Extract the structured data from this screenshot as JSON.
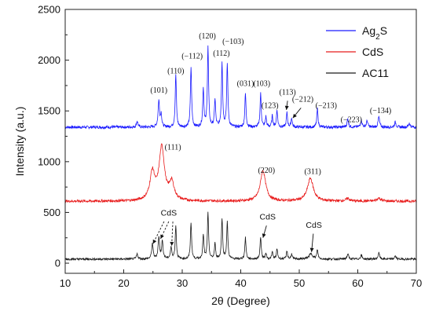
{
  "chart_data": {
    "type": "line",
    "xlabel": "2θ (Degree)",
    "ylabel": "Intensity (a.u.)",
    "xlim": [
      10,
      70
    ],
    "ylim": [
      -100,
      2500
    ],
    "xticks": [
      "10",
      "20",
      "30",
      "40",
      "50",
      "60",
      "70"
    ],
    "xtick_values": [
      10,
      20,
      30,
      40,
      50,
      60,
      70
    ],
    "yticks": [
      "0",
      "500",
      "1000",
      "1500",
      "2000",
      "2500"
    ],
    "ytick_values": [
      0,
      500,
      1000,
      1500,
      2000,
      2500
    ],
    "grid": false,
    "legend_position": "top-right",
    "series": [
      {
        "name": "Ag",
        "name_sub": "2",
        "name_tail": "S",
        "color": "#1a1aff",
        "baseline": 1340,
        "noise": 14,
        "peaks": [
          {
            "x": 22.3,
            "h": 60,
            "w": 0.15
          },
          {
            "x": 26.0,
            "h": 260,
            "w": 0.15
          },
          {
            "x": 26.4,
            "h": 120,
            "w": 0.12
          },
          {
            "x": 28.9,
            "h": 520,
            "w": 0.12
          },
          {
            "x": 31.5,
            "h": 590,
            "w": 0.12
          },
          {
            "x": 33.6,
            "h": 380,
            "w": 0.12
          },
          {
            "x": 34.4,
            "h": 790,
            "w": 0.12
          },
          {
            "x": 35.6,
            "h": 270,
            "w": 0.12
          },
          {
            "x": 36.8,
            "h": 640,
            "w": 0.12
          },
          {
            "x": 37.7,
            "h": 620,
            "w": 0.12
          },
          {
            "x": 40.8,
            "h": 330,
            "w": 0.12
          },
          {
            "x": 43.4,
            "h": 330,
            "w": 0.12
          },
          {
            "x": 44.3,
            "h": 100,
            "w": 0.12
          },
          {
            "x": 45.4,
            "h": 110,
            "w": 0.12
          },
          {
            "x": 46.2,
            "h": 170,
            "w": 0.12
          },
          {
            "x": 47.9,
            "h": 140,
            "w": 0.12
          },
          {
            "x": 48.7,
            "h": 90,
            "w": 0.12
          },
          {
            "x": 53.1,
            "h": 180,
            "w": 0.12
          },
          {
            "x": 58.3,
            "h": 80,
            "w": 0.15
          },
          {
            "x": 60.6,
            "h": 70,
            "w": 0.15
          },
          {
            "x": 61.6,
            "h": 60,
            "w": 0.15
          },
          {
            "x": 63.6,
            "h": 100,
            "w": 0.15
          },
          {
            "x": 66.4,
            "h": 50,
            "w": 0.15
          },
          {
            "x": 68.8,
            "h": 40,
            "w": 0.15
          }
        ]
      },
      {
        "name": "CdS",
        "color": "#e81c1c",
        "baseline": 610,
        "noise": 13,
        "peaks": [
          {
            "x": 24.9,
            "h": 270,
            "w": 0.5
          },
          {
            "x": 26.5,
            "h": 520,
            "w": 0.55
          },
          {
            "x": 28.2,
            "h": 170,
            "w": 0.5
          },
          {
            "x": 43.8,
            "h": 300,
            "w": 0.55
          },
          {
            "x": 51.9,
            "h": 225,
            "w": 0.6
          },
          {
            "x": 58.3,
            "h": 25,
            "w": 0.4
          },
          {
            "x": 63.6,
            "h": 30,
            "w": 0.4
          }
        ]
      },
      {
        "name": "AC11",
        "color": "#1a1a1a",
        "baseline": 40,
        "noise": 10,
        "peaks": [
          {
            "x": 22.3,
            "h": 50,
            "w": 0.15
          },
          {
            "x": 24.9,
            "h": 150,
            "w": 0.15
          },
          {
            "x": 26.0,
            "h": 210,
            "w": 0.15
          },
          {
            "x": 26.6,
            "h": 170,
            "w": 0.15
          },
          {
            "x": 28.1,
            "h": 110,
            "w": 0.15
          },
          {
            "x": 28.9,
            "h": 330,
            "w": 0.12
          },
          {
            "x": 31.5,
            "h": 360,
            "w": 0.12
          },
          {
            "x": 33.6,
            "h": 240,
            "w": 0.12
          },
          {
            "x": 34.4,
            "h": 450,
            "w": 0.12
          },
          {
            "x": 35.6,
            "h": 150,
            "w": 0.12
          },
          {
            "x": 36.8,
            "h": 400,
            "w": 0.12
          },
          {
            "x": 37.7,
            "h": 360,
            "w": 0.12
          },
          {
            "x": 40.8,
            "h": 210,
            "w": 0.12
          },
          {
            "x": 43.4,
            "h": 220,
            "w": 0.12
          },
          {
            "x": 44.3,
            "h": 60,
            "w": 0.12
          },
          {
            "x": 45.4,
            "h": 70,
            "w": 0.12
          },
          {
            "x": 46.2,
            "h": 100,
            "w": 0.12
          },
          {
            "x": 47.9,
            "h": 80,
            "w": 0.12
          },
          {
            "x": 48.7,
            "h": 50,
            "w": 0.12
          },
          {
            "x": 52.0,
            "h": 50,
            "w": 0.4
          },
          {
            "x": 53.1,
            "h": 90,
            "w": 0.12
          },
          {
            "x": 58.3,
            "h": 50,
            "w": 0.15
          },
          {
            "x": 60.6,
            "h": 40,
            "w": 0.15
          },
          {
            "x": 63.6,
            "h": 60,
            "w": 0.15
          },
          {
            "x": 66.4,
            "h": 30,
            "w": 0.15
          }
        ]
      }
    ],
    "annotations": [
      {
        "text": "(101)",
        "x": 26.0,
        "y": 1680
      },
      {
        "text": "(110)",
        "x": 28.9,
        "y": 1870
      },
      {
        "text": "(−112)",
        "x": 31.7,
        "y": 2015
      },
      {
        "text": "(120)",
        "x": 34.3,
        "y": 2215
      },
      {
        "text": "(112)",
        "x": 36.7,
        "y": 2045
      },
      {
        "text": "(−103)",
        "x": 38.7,
        "y": 2160
      },
      {
        "text": "(031)",
        "x": 40.8,
        "y": 1745
      },
      {
        "text": "(103)",
        "x": 43.6,
        "y": 1745
      },
      {
        "text": "(123)",
        "x": 45.0,
        "y": 1530
      },
      {
        "text": "(113)",
        "x": 48.0,
        "y": 1660
      },
      {
        "text": "(−212)",
        "x": 50.6,
        "y": 1590
      },
      {
        "text": "(−213)",
        "x": 54.6,
        "y": 1530
      },
      {
        "text": "(−223)",
        "x": 58.9,
        "y": 1390
      },
      {
        "text": "(−134)",
        "x": 63.9,
        "y": 1480
      },
      {
        "text": "(111)",
        "x": 28.4,
        "y": 1120
      },
      {
        "text": "(220)",
        "x": 44.4,
        "y": 890
      },
      {
        "text": "(311)",
        "x": 52.3,
        "y": 880
      }
    ],
    "cds_markers": [
      {
        "text": "CdS",
        "x": 27.7,
        "y": 470,
        "arrows": [
          {
            "from": [
              26.9,
              410
            ],
            "to": [
              25.0,
              190
            ],
            "dashed": true
          },
          {
            "from": [
              27.7,
              410
            ],
            "to": [
              26.3,
              240
            ],
            "dashed": true
          },
          {
            "from": [
              28.4,
              410
            ],
            "to": [
              28.2,
              170
            ],
            "dashed": true
          }
        ]
      },
      {
        "text": "CdS",
        "x": 44.6,
        "y": 430,
        "arrows": [
          {
            "from": [
              44.4,
              370
            ],
            "to": [
              43.8,
              250
            ],
            "dashed": false
          }
        ]
      },
      {
        "text": "CdS",
        "x": 52.5,
        "y": 350,
        "arrows": [
          {
            "from": [
              52.4,
              290
            ],
            "to": [
              52.1,
              110
            ],
            "dashed": false
          }
        ]
      }
    ],
    "peak_arrows": [
      {
        "from": [
          48.0,
          1600
        ],
        "to": [
          47.8,
          1510
        ]
      },
      {
        "from": [
          50.3,
          1530
        ],
        "to": [
          48.9,
          1430
        ]
      }
    ]
  }
}
